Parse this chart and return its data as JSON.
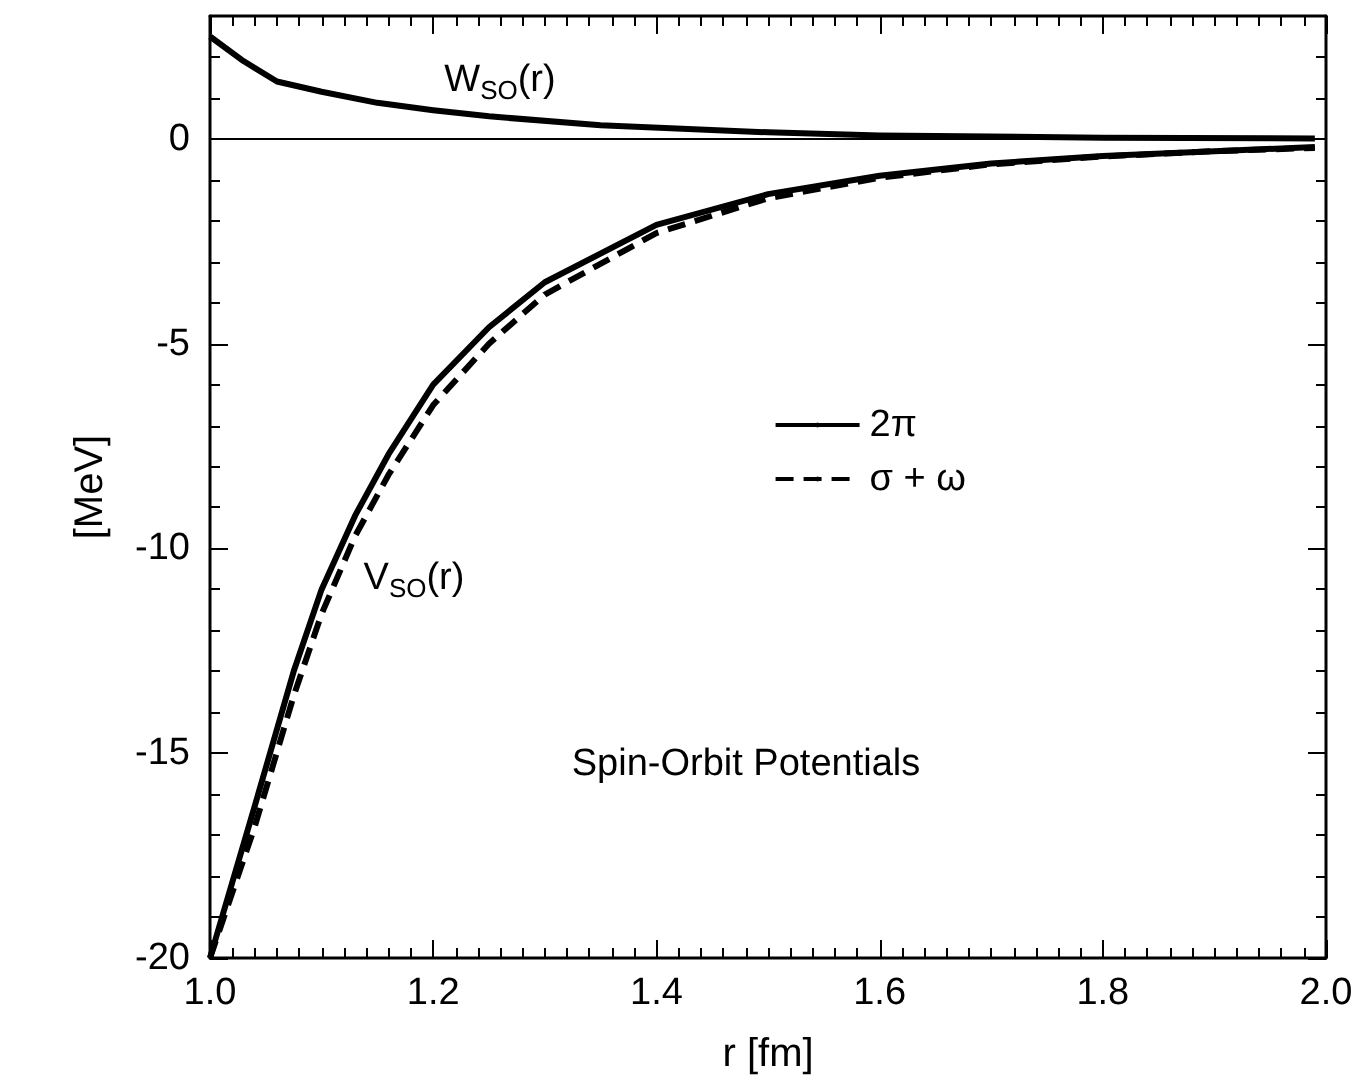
{
  "chart_data": {
    "type": "line",
    "xlabel": "r [fm]",
    "ylabel": "[MeV]",
    "xlim": [
      1,
      2
    ],
    "ylim": [
      -20,
      3
    ],
    "xticks": [
      {
        "value": 1,
        "label": "1.0"
      },
      {
        "value": 1.2,
        "label": "1.2"
      },
      {
        "value": 1.4,
        "label": "1.4"
      },
      {
        "value": 1.6,
        "label": "1.6"
      },
      {
        "value": 1.8,
        "label": "1.8"
      },
      {
        "value": 2,
        "label": "2.0"
      }
    ],
    "yticks": [
      -20,
      -15,
      -10,
      -5,
      0
    ],
    "series": [
      {
        "name": "2π",
        "color": "#000000",
        "line_style": "solid",
        "x": [
          1.0,
          1.04,
          1.075,
          1.1,
          1.13,
          1.16,
          1.2,
          1.25,
          1.3,
          1.4,
          1.5,
          1.6,
          1.7,
          1.8,
          1.9,
          1.99
        ],
        "values": [
          -20,
          -16.3,
          -13.0,
          -11.0,
          -9.2,
          -7.7,
          -6.0,
          -4.6,
          -3.5,
          -2.1,
          -1.35,
          -0.9,
          -0.6,
          -0.42,
          -0.3,
          -0.2
        ]
      },
      {
        "name": "σ + ω",
        "color": "#000000",
        "line_style": "dashed",
        "x": [
          1.0,
          1.04,
          1.075,
          1.1,
          1.13,
          1.16,
          1.2,
          1.25,
          1.3,
          1.4,
          1.5,
          1.6,
          1.7,
          1.8,
          1.9,
          1.99
        ],
        "values": [
          -20,
          -16.8,
          -13.6,
          -11.6,
          -9.7,
          -8.2,
          -6.5,
          -5.0,
          -3.8,
          -2.3,
          -1.45,
          -0.95,
          -0.62,
          -0.43,
          -0.3,
          -0.22
        ]
      },
      {
        "color": "#000000",
        "line_style": "solid",
        "x": [
          1.0,
          1.03,
          1.06,
          1.1,
          1.15,
          1.2,
          1.25,
          1.35,
          1.5,
          1.6,
          1.8,
          1.99
        ],
        "values": [
          2.5,
          1.9,
          1.4,
          1.15,
          0.88,
          0.7,
          0.55,
          0.33,
          0.16,
          0.08,
          0.03,
          0.01
        ]
      }
    ],
    "ref_lines": [
      {
        "axis": "y",
        "value": 0,
        "color": "#000000",
        "line_style": "solid"
      }
    ],
    "annotations": [
      "W$_{SO}$(r)",
      "V$_{SO}$(r)",
      "Spin-Orbit Potentials"
    ],
    "legend": "center",
    "marker": "none",
    "grid": false
  }
}
